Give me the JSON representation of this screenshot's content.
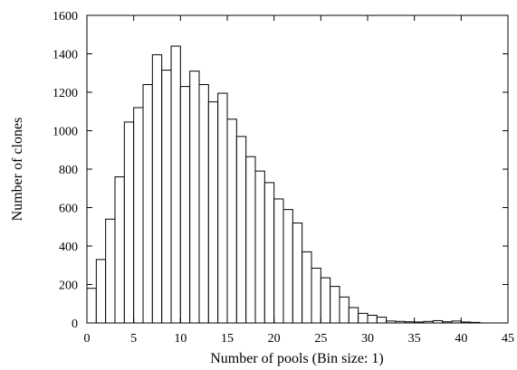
{
  "chart_data": {
    "type": "bar",
    "title": "",
    "xlabel": "Number of pools (Bin size: 1)",
    "ylabel": "Number of clones",
    "xlim": [
      0,
      45
    ],
    "ylim": [
      0,
      1600
    ],
    "xticks": [
      0,
      5,
      10,
      15,
      20,
      25,
      30,
      35,
      40,
      45
    ],
    "yticks": [
      0,
      200,
      400,
      600,
      800,
      1000,
      1200,
      1400,
      1600
    ],
    "grid": false,
    "bin_size": 1,
    "bin_starts": [
      0,
      1,
      2,
      3,
      4,
      5,
      6,
      7,
      8,
      9,
      10,
      11,
      12,
      13,
      14,
      15,
      16,
      17,
      18,
      19,
      20,
      21,
      22,
      23,
      24,
      25,
      26,
      27,
      28,
      29,
      30,
      31,
      32,
      33,
      34,
      35,
      36,
      37,
      38,
      39,
      40,
      41
    ],
    "values": [
      180,
      330,
      540,
      760,
      1045,
      1120,
      1240,
      1395,
      1315,
      1440,
      1230,
      1310,
      1240,
      1150,
      1195,
      1060,
      970,
      865,
      790,
      730,
      645,
      590,
      520,
      370,
      285,
      235,
      190,
      135,
      80,
      50,
      40,
      30,
      10,
      8,
      6,
      5,
      8,
      12,
      6,
      10,
      5,
      3
    ]
  }
}
